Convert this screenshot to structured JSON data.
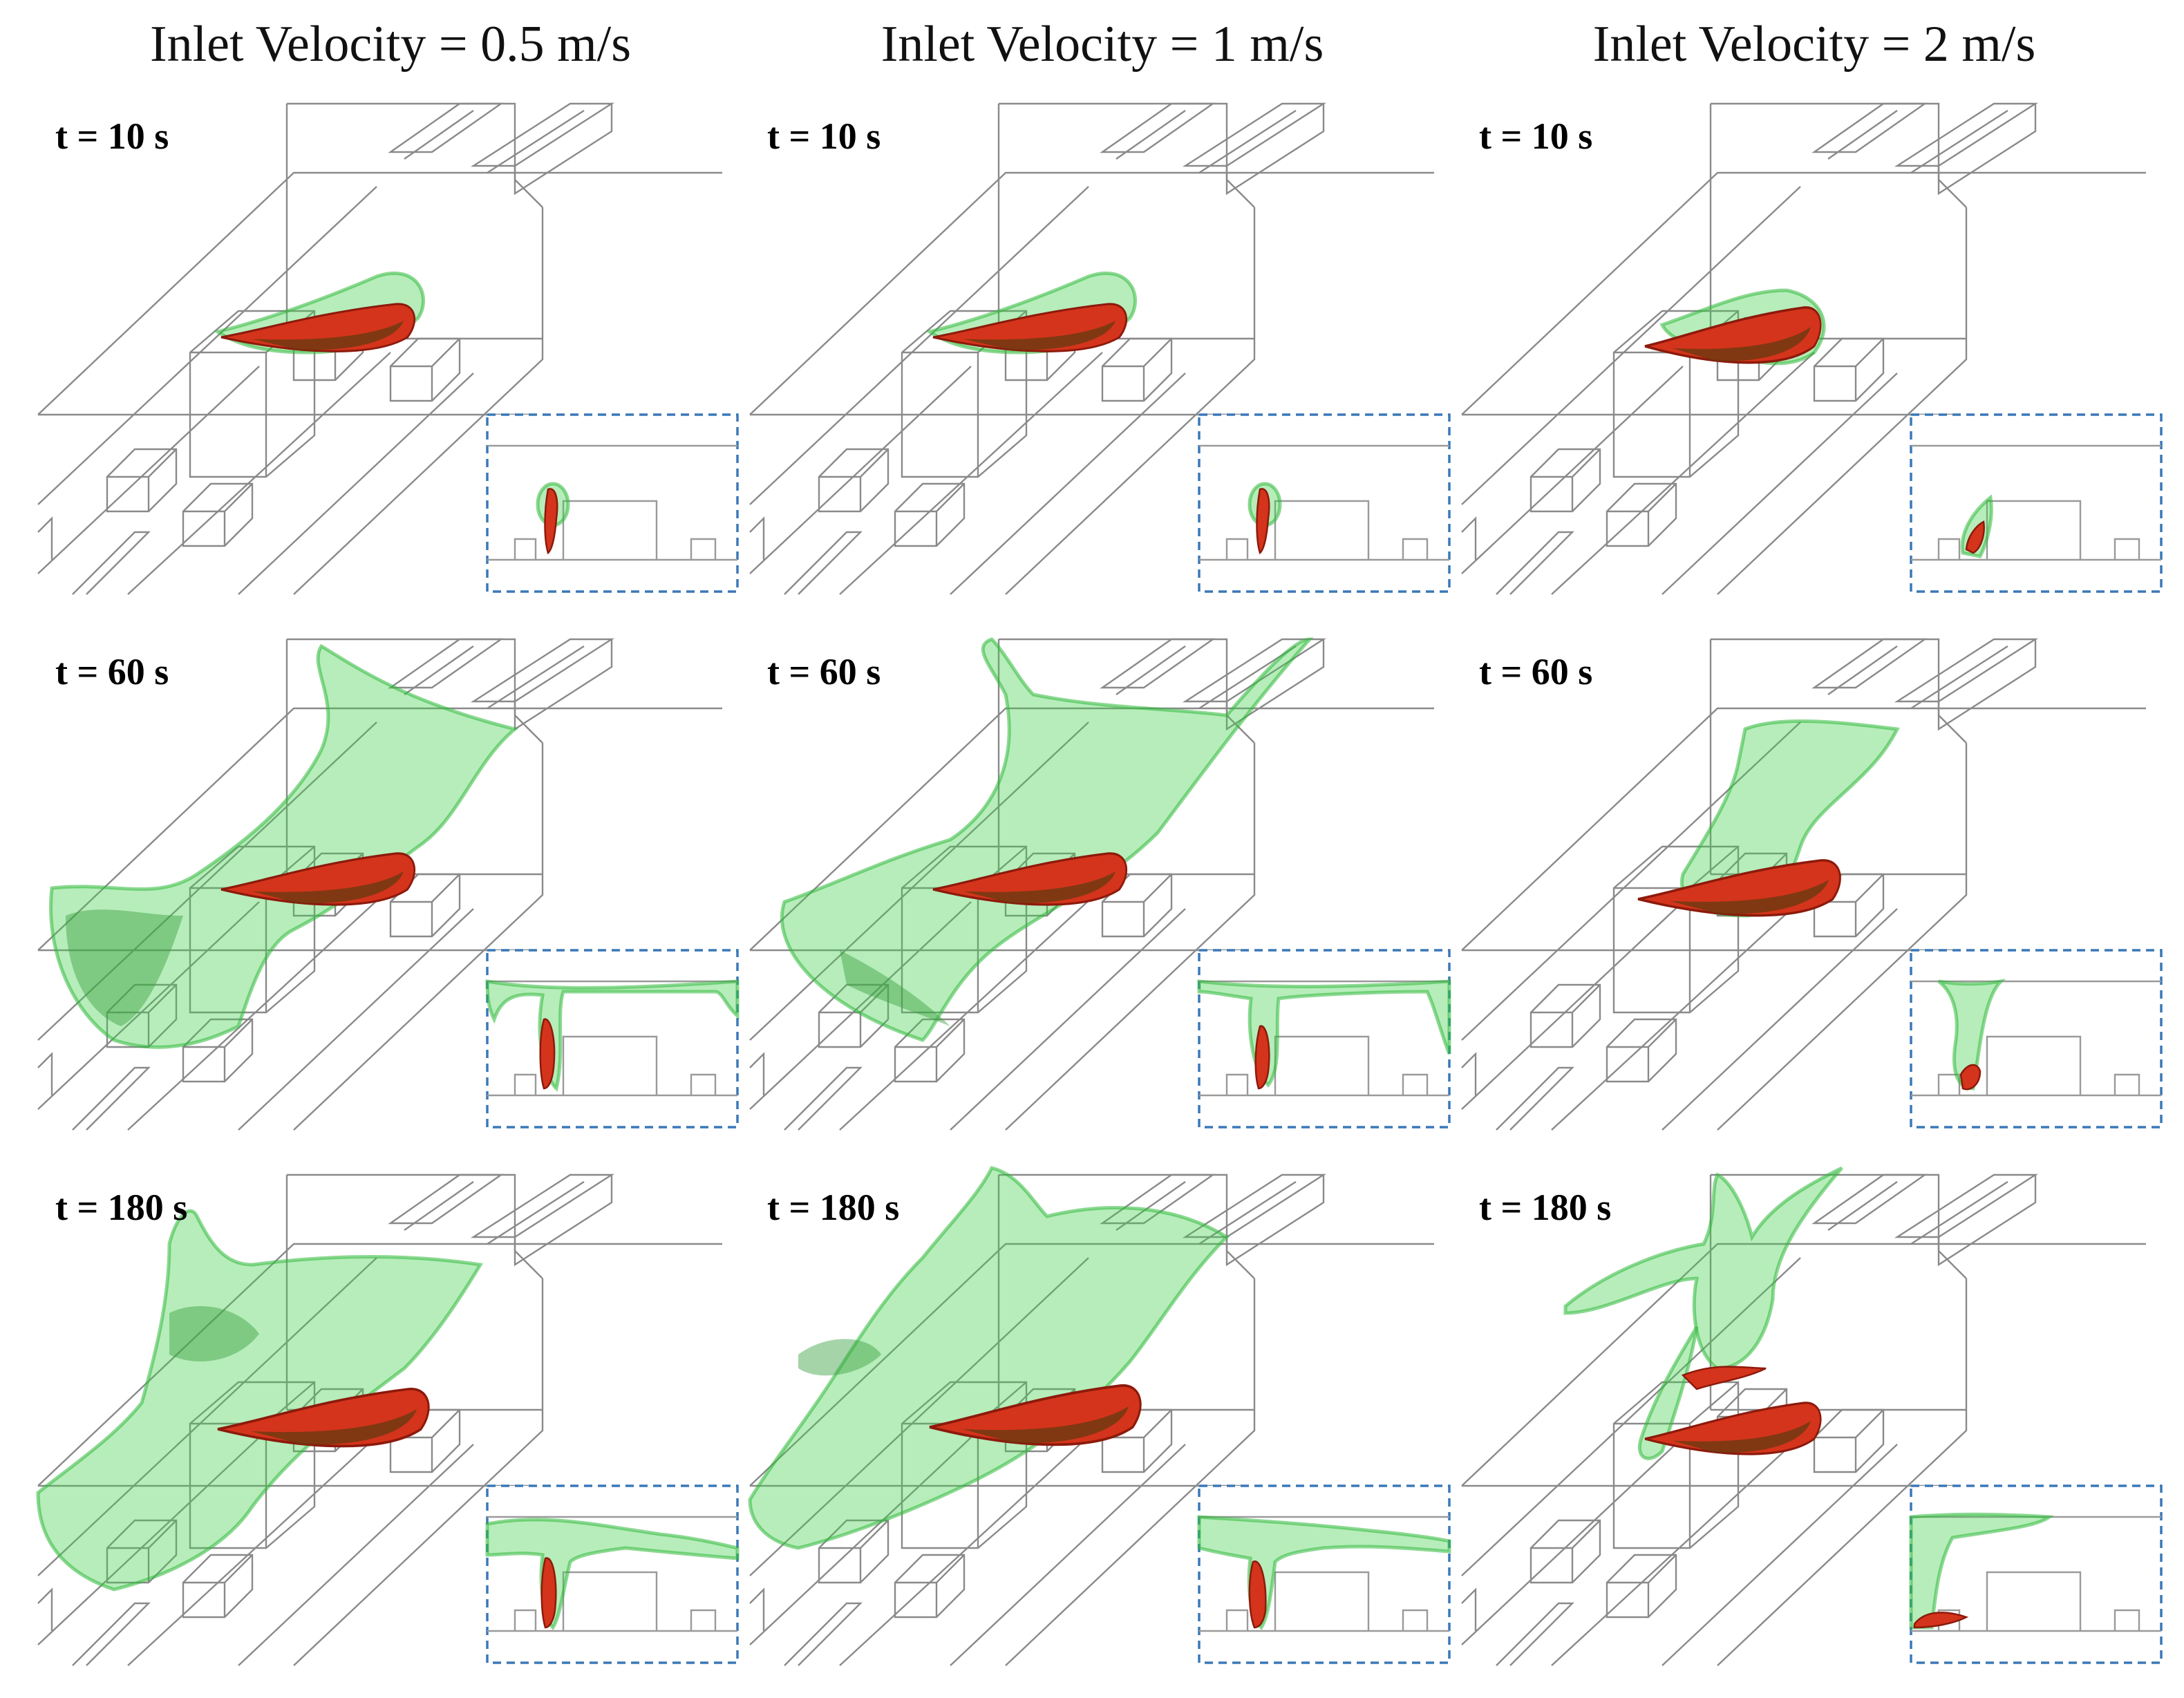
{
  "columns": [
    {
      "header": "Inlet Velocity = 0.5 m/s"
    },
    {
      "header": "Inlet Velocity = 1 m/s"
    },
    {
      "header": "Inlet Velocity = 2 m/s"
    }
  ],
  "rows": [
    {
      "time": "t = 10 s"
    },
    {
      "time": "t = 60 s"
    },
    {
      "time": "t = 180 s"
    }
  ],
  "colors": {
    "plume_outer": "#3fcf4a",
    "plume_core": "#d4341b",
    "inset_border": "#3a78b8",
    "wireframe": "#8a8a8a"
  }
}
